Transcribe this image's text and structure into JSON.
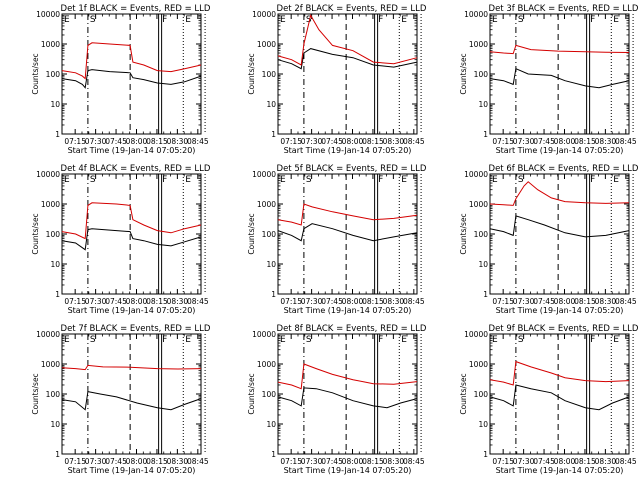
{
  "shared": {
    "x_tick_labels": [
      "07:15",
      "07:30",
      "07:45",
      "08:00",
      "08:15",
      "08:30",
      "08:45"
    ],
    "y_tick_labels": [
      "1",
      "10",
      "100",
      "1000",
      "10000"
    ],
    "xlabel": "Start Time (19-Jan-14 07:05:20)",
    "ylabel": "Counts/sec",
    "markers": [
      {
        "label": "E",
        "minute": 0,
        "style": "dotted"
      },
      {
        "label": "S",
        "minute": 19,
        "style": "dash-dot"
      },
      {
        "label": "",
        "minute": 50,
        "style": "dashed"
      },
      {
        "label": "F",
        "minute": 72,
        "style": "double"
      },
      {
        "label": "E",
        "minute": 89,
        "style": "dotted"
      },
      {
        "label": "",
        "minute": 105,
        "style": "dotted"
      }
    ],
    "colors": {
      "events": "#000000",
      "lld": "#d40000",
      "axis": "#000000"
    }
  },
  "chart_data": [
    {
      "type": "line",
      "title": "Det 1f BLACK = Events, RED = LLD",
      "xlabel": "Start Time (19-Jan-14 07:05:20)",
      "ylabel": "Counts/sec",
      "x_range_minutes_from_07_05_20": [
        0,
        102
      ],
      "ylim": [
        1,
        10000
      ],
      "yscale": "log",
      "series": [
        {
          "name": "Events",
          "color": "black",
          "points": [
            [
              0,
              70
            ],
            [
              10,
              60
            ],
            [
              15,
              45
            ],
            [
              17,
              35
            ],
            [
              19,
              130
            ],
            [
              22,
              140
            ],
            [
              35,
              120
            ],
            [
              50,
              110
            ],
            [
              52,
              75
            ],
            [
              60,
              65
            ],
            [
              70,
              50
            ],
            [
              80,
              45
            ],
            [
              90,
              55
            ],
            [
              102,
              85
            ]
          ]
        },
        {
          "name": "LLD",
          "color": "red",
          "points": [
            [
              0,
              130
            ],
            [
              10,
              110
            ],
            [
              15,
              85
            ],
            [
              17,
              70
            ],
            [
              19,
              900
            ],
            [
              22,
              1100
            ],
            [
              35,
              1000
            ],
            [
              50,
              900
            ],
            [
              52,
              250
            ],
            [
              60,
              200
            ],
            [
              70,
              130
            ],
            [
              80,
              120
            ],
            [
              90,
              150
            ],
            [
              102,
              200
            ]
          ]
        }
      ]
    },
    {
      "type": "line",
      "title": "Det 2f BLACK = Events, RED = LLD",
      "xlabel": "Start Time (19-Jan-14 07:05:20)",
      "ylabel": "Counts/sec",
      "x_range_minutes_from_07_05_20": [
        0,
        102
      ],
      "ylim": [
        1,
        10000
      ],
      "yscale": "log",
      "series": [
        {
          "name": "Events",
          "color": "black",
          "points": [
            [
              0,
              300
            ],
            [
              10,
              220
            ],
            [
              17,
              150
            ],
            [
              19,
              500
            ],
            [
              24,
              700
            ],
            [
              40,
              450
            ],
            [
              55,
              350
            ],
            [
              70,
              200
            ],
            [
              85,
              170
            ],
            [
              102,
              250
            ]
          ]
        },
        {
          "name": "LLD",
          "color": "red",
          "points": [
            [
              0,
              400
            ],
            [
              10,
              300
            ],
            [
              17,
              200
            ],
            [
              19,
              1000
            ],
            [
              24,
              9000
            ],
            [
              30,
              3000
            ],
            [
              40,
              900
            ],
            [
              55,
              600
            ],
            [
              70,
              250
            ],
            [
              85,
              220
            ],
            [
              102,
              350
            ]
          ]
        }
      ]
    },
    {
      "type": "line",
      "title": "Det 3f BLACK = Events, RED = LLD",
      "xlabel": "Start Time (19-Jan-14 07:05:20)",
      "ylabel": "Counts/sec",
      "x_range_minutes_from_07_05_20": [
        0,
        102
      ],
      "ylim": [
        1,
        10000
      ],
      "yscale": "log",
      "series": [
        {
          "name": "Events",
          "color": "black",
          "points": [
            [
              0,
              70
            ],
            [
              10,
              60
            ],
            [
              17,
              45
            ],
            [
              19,
              150
            ],
            [
              28,
              100
            ],
            [
              45,
              90
            ],
            [
              55,
              60
            ],
            [
              70,
              40
            ],
            [
              80,
              35
            ],
            [
              90,
              45
            ],
            [
              102,
              60
            ]
          ]
        },
        {
          "name": "LLD",
          "color": "red",
          "points": [
            [
              0,
              550
            ],
            [
              10,
              500
            ],
            [
              17,
              480
            ],
            [
              19,
              900
            ],
            [
              30,
              650
            ],
            [
              50,
              580
            ],
            [
              70,
              550
            ],
            [
              85,
              530
            ],
            [
              102,
              520
            ]
          ]
        }
      ]
    },
    {
      "type": "line",
      "title": "Det 4f BLACK = Events, RED = LLD",
      "xlabel": "Start Time (19-Jan-14 07:05:20)",
      "ylabel": "Counts/sec",
      "x_range_minutes_from_07_05_20": [
        0,
        102
      ],
      "ylim": [
        1,
        10000
      ],
      "yscale": "log",
      "series": [
        {
          "name": "Events",
          "color": "black",
          "points": [
            [
              0,
              60
            ],
            [
              10,
              50
            ],
            [
              17,
              30
            ],
            [
              19,
              140
            ],
            [
              22,
              150
            ],
            [
              40,
              130
            ],
            [
              50,
              120
            ],
            [
              52,
              70
            ],
            [
              60,
              60
            ],
            [
              70,
              45
            ],
            [
              80,
              40
            ],
            [
              90,
              55
            ],
            [
              102,
              80
            ]
          ]
        },
        {
          "name": "LLD",
          "color": "red",
          "points": [
            [
              0,
              120
            ],
            [
              10,
              100
            ],
            [
              17,
              70
            ],
            [
              19,
              900
            ],
            [
              22,
              1100
            ],
            [
              40,
              1000
            ],
            [
              50,
              900
            ],
            [
              52,
              300
            ],
            [
              60,
              200
            ],
            [
              70,
              130
            ],
            [
              80,
              110
            ],
            [
              90,
              150
            ],
            [
              102,
              200
            ]
          ]
        }
      ]
    },
    {
      "type": "line",
      "title": "Det 5f BLACK = Events, RED = LLD",
      "xlabel": "Start Time (19-Jan-14 07:05:20)",
      "ylabel": "Counts/sec",
      "x_range_minutes_from_07_05_20": [
        0,
        102
      ],
      "ylim": [
        1,
        10000
      ],
      "yscale": "log",
      "series": [
        {
          "name": "Events",
          "color": "black",
          "points": [
            [
              0,
              130
            ],
            [
              10,
              90
            ],
            [
              17,
              60
            ],
            [
              19,
              150
            ],
            [
              25,
              220
            ],
            [
              40,
              150
            ],
            [
              55,
              90
            ],
            [
              70,
              60
            ],
            [
              85,
              80
            ],
            [
              102,
              110
            ]
          ]
        },
        {
          "name": "LLD",
          "color": "red",
          "points": [
            [
              0,
              300
            ],
            [
              10,
              250
            ],
            [
              17,
              200
            ],
            [
              19,
              1000
            ],
            [
              25,
              800
            ],
            [
              40,
              550
            ],
            [
              55,
              400
            ],
            [
              70,
              300
            ],
            [
              85,
              330
            ],
            [
              102,
              420
            ]
          ]
        }
      ]
    },
    {
      "type": "line",
      "title": "Det 6f BLACK = Events, RED = LLD",
      "xlabel": "Start Time (19-Jan-14 07:05:20)",
      "ylabel": "Counts/sec",
      "x_range_minutes_from_07_05_20": [
        0,
        102
      ],
      "ylim": [
        1,
        10000
      ],
      "yscale": "log",
      "series": [
        {
          "name": "Events",
          "color": "black",
          "points": [
            [
              0,
              150
            ],
            [
              10,
              120
            ],
            [
              17,
              90
            ],
            [
              19,
              400
            ],
            [
              28,
              300
            ],
            [
              40,
              200
            ],
            [
              55,
              110
            ],
            [
              70,
              80
            ],
            [
              85,
              90
            ],
            [
              102,
              130
            ]
          ]
        },
        {
          "name": "LLD",
          "color": "red",
          "points": [
            [
              0,
              1000
            ],
            [
              10,
              950
            ],
            [
              17,
              900
            ],
            [
              19,
              1500
            ],
            [
              25,
              4000
            ],
            [
              28,
              5500
            ],
            [
              35,
              3000
            ],
            [
              45,
              1600
            ],
            [
              55,
              1200
            ],
            [
              70,
              1100
            ],
            [
              85,
              1050
            ],
            [
              102,
              1100
            ]
          ]
        }
      ]
    },
    {
      "type": "line",
      "title": "Det 7f BLACK = Events, RED = LLD",
      "xlabel": "Start Time (19-Jan-14 07:05:20)",
      "ylabel": "Counts/sec",
      "x_range_minutes_from_07_05_20": [
        0,
        102
      ],
      "ylim": [
        1,
        10000
      ],
      "yscale": "log",
      "series": [
        {
          "name": "Events",
          "color": "black",
          "points": [
            [
              0,
              65
            ],
            [
              10,
              55
            ],
            [
              17,
              30
            ],
            [
              19,
              120
            ],
            [
              28,
              100
            ],
            [
              40,
              80
            ],
            [
              55,
              50
            ],
            [
              70,
              35
            ],
            [
              80,
              30
            ],
            [
              90,
              45
            ],
            [
              102,
              70
            ]
          ]
        },
        {
          "name": "LLD",
          "color": "red",
          "points": [
            [
              0,
              750
            ],
            [
              10,
              700
            ],
            [
              17,
              650
            ],
            [
              19,
              900
            ],
            [
              30,
              800
            ],
            [
              50,
              780
            ],
            [
              70,
              700
            ],
            [
              85,
              680
            ],
            [
              102,
              700
            ]
          ]
        }
      ]
    },
    {
      "type": "line",
      "title": "Det 8f BLACK = Events, RED = LLD",
      "xlabel": "Start Time (19-Jan-14 07:05:20)",
      "ylabel": "Counts/sec",
      "x_range_minutes_from_07_05_20": [
        0,
        102
      ],
      "ylim": [
        1,
        10000
      ],
      "yscale": "log",
      "series": [
        {
          "name": "Events",
          "color": "black",
          "points": [
            [
              0,
              80
            ],
            [
              10,
              60
            ],
            [
              17,
              40
            ],
            [
              19,
              160
            ],
            [
              28,
              150
            ],
            [
              40,
              110
            ],
            [
              55,
              60
            ],
            [
              70,
              40
            ],
            [
              80,
              35
            ],
            [
              90,
              50
            ],
            [
              102,
              70
            ]
          ]
        },
        {
          "name": "LLD",
          "color": "red",
          "points": [
            [
              0,
              250
            ],
            [
              10,
              200
            ],
            [
              17,
              150
            ],
            [
              19,
              1000
            ],
            [
              28,
              700
            ],
            [
              40,
              450
            ],
            [
              55,
              300
            ],
            [
              70,
              220
            ],
            [
              85,
              210
            ],
            [
              102,
              260
            ]
          ]
        }
      ]
    },
    {
      "type": "line",
      "title": "Det 9f BLACK = Events, RED = LLD",
      "xlabel": "Start Time (19-Jan-14 07:05:20)",
      "ylabel": "Counts/sec",
      "x_range_minutes_from_07_05_20": [
        0,
        102
      ],
      "ylim": [
        1,
        10000
      ],
      "yscale": "log",
      "series": [
        {
          "name": "Events",
          "color": "black",
          "points": [
            [
              0,
              80
            ],
            [
              10,
              60
            ],
            [
              17,
              40
            ],
            [
              19,
              200
            ],
            [
              30,
              150
            ],
            [
              45,
              110
            ],
            [
              55,
              60
            ],
            [
              70,
              35
            ],
            [
              80,
              30
            ],
            [
              90,
              50
            ],
            [
              102,
              80
            ]
          ]
        },
        {
          "name": "LLD",
          "color": "red",
          "points": [
            [
              0,
              300
            ],
            [
              10,
              250
            ],
            [
              17,
              200
            ],
            [
              19,
              1200
            ],
            [
              30,
              800
            ],
            [
              45,
              500
            ],
            [
              55,
              350
            ],
            [
              70,
              280
            ],
            [
              85,
              260
            ],
            [
              102,
              280
            ]
          ]
        }
      ]
    }
  ]
}
